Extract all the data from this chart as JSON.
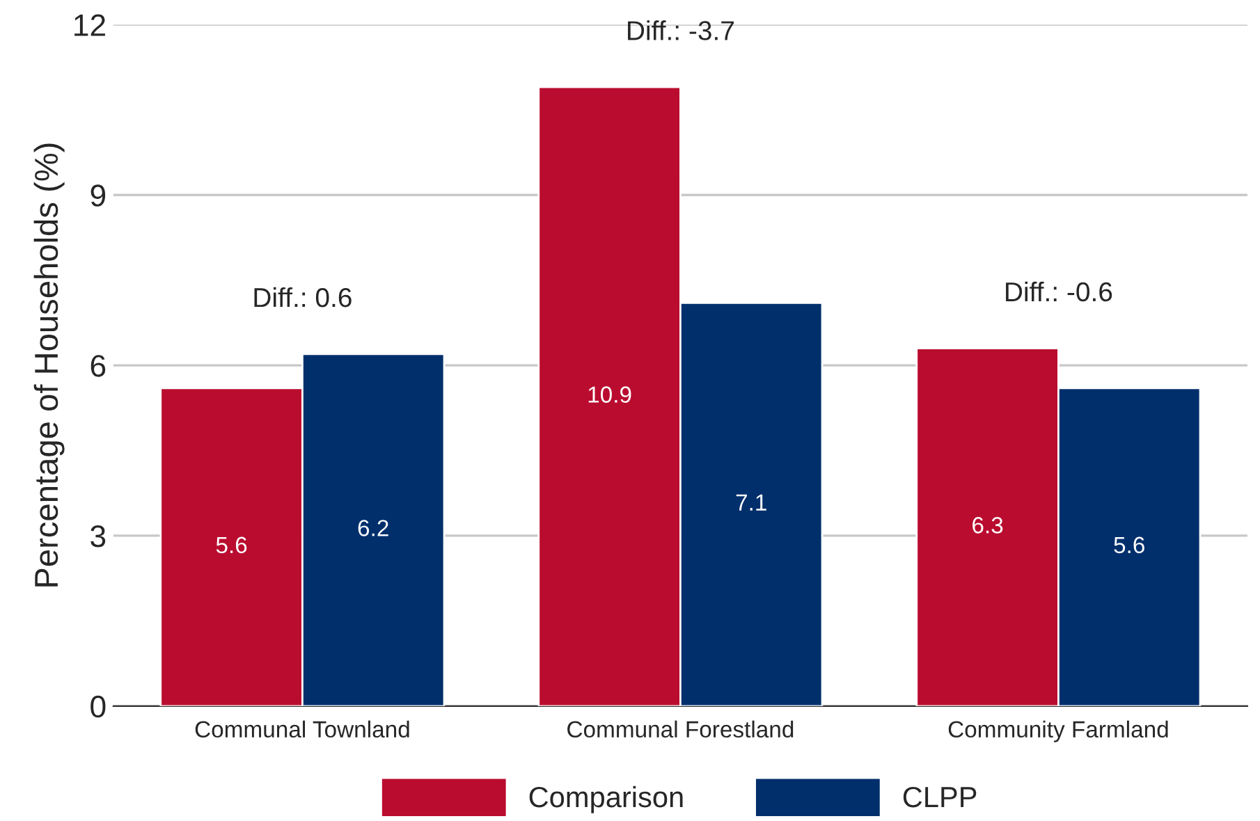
{
  "chart_data": {
    "type": "bar",
    "ylabel": "Percentage of Households (%)",
    "categories": [
      "Communal Townland",
      "Communal Forestland",
      "Community Farmland"
    ],
    "series": [
      {
        "name": "Comparison",
        "color": "#ba0c2f",
        "values": [
          5.6,
          10.9,
          6.3
        ]
      },
      {
        "name": "CLPP",
        "color": "#002f6c",
        "values": [
          6.2,
          7.1,
          5.6
        ]
      }
    ],
    "ylim": [
      0,
      12
    ],
    "yticks": [
      0,
      3,
      6,
      9,
      12
    ],
    "grid": "y",
    "legend": "bottom",
    "data_labels": true,
    "annotations": [
      "Diff.: 0.6",
      "Diff.: -3.7",
      "Diff.: -0.6"
    ]
  }
}
